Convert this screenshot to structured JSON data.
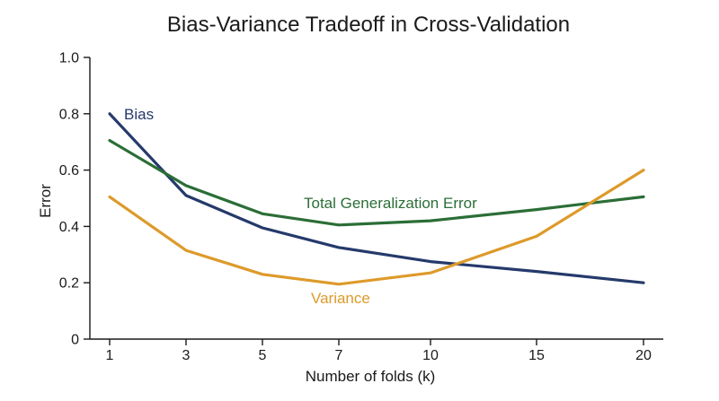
{
  "chart_data": {
    "type": "line",
    "title": "Bias-Variance Tradeoff in Cross-Validation",
    "xlabel": "Number of folds (k)",
    "ylabel": "Error",
    "categories": [
      "1",
      "3",
      "5",
      "7",
      "10",
      "15",
      "20"
    ],
    "x_ticks": [
      "1",
      "3",
      "5",
      "7",
      "10",
      "15",
      "20"
    ],
    "y_ticks": [
      "0",
      "0.2",
      "0.4",
      "0.6",
      "0.8",
      "1.0"
    ],
    "ylim": [
      0,
      1.0
    ],
    "grid": false,
    "series": [
      {
        "name": "Bias",
        "color": "#253a6b",
        "values": [
          0.8,
          0.51,
          0.395,
          0.325,
          0.275,
          0.24,
          0.2
        ]
      },
      {
        "name": "Total Generalization Error",
        "color": "#2b6e37",
        "values": [
          0.705,
          0.545,
          0.445,
          0.405,
          0.42,
          0.46,
          0.505
        ]
      },
      {
        "name": "Variance",
        "color": "#dd9a2a",
        "values": [
          0.505,
          0.315,
          0.23,
          0.195,
          0.235,
          0.365,
          0.6
        ]
      }
    ]
  }
}
